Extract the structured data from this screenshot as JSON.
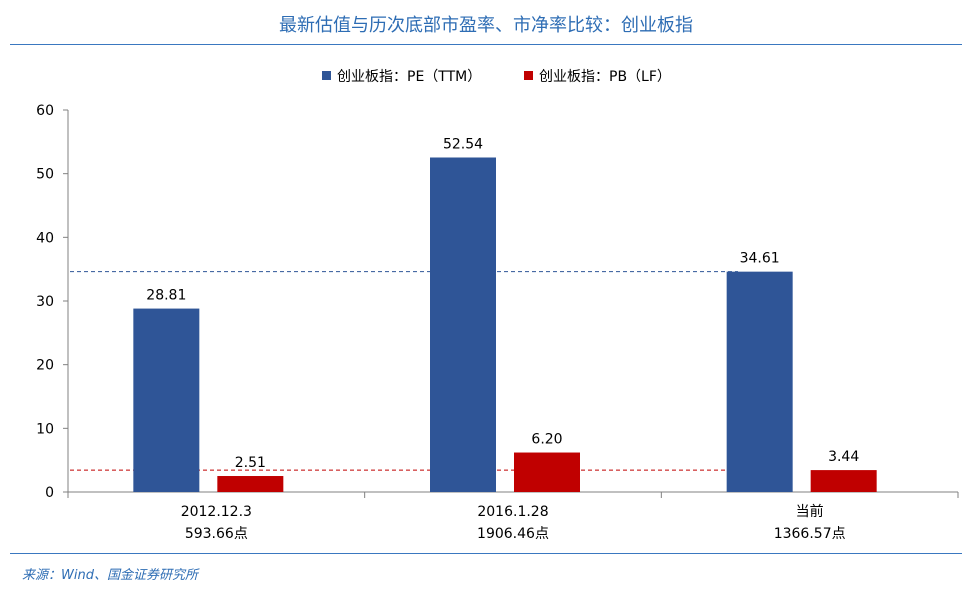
{
  "chart_title": "最新估值与历次底部市盈率、市净率比较：创业板指",
  "source": "来源：Wind、国金证券研究所",
  "chart_data": {
    "type": "bar",
    "title": "最新估值与历次底部市盈率、市净率比较：创业板指",
    "categories": [
      {
        "line1": "2012.12.3",
        "line2": "593.66点"
      },
      {
        "line1": "2016.1.28",
        "line2": "1906.46点"
      },
      {
        "line1": "当前",
        "line2": "1366.57点"
      }
    ],
    "series": [
      {
        "name": "创业板指：PE（TTM）",
        "color": "#2f5597",
        "values": [
          28.81,
          52.54,
          34.61
        ],
        "labels": [
          "28.81",
          "52.54",
          "34.61"
        ]
      },
      {
        "name": "创业板指：PB（LF）",
        "color": "#c00000",
        "values": [
          2.51,
          6.2,
          3.44
        ],
        "labels": [
          "2.51",
          "6.20",
          "3.44"
        ]
      }
    ],
    "reference_lines": [
      {
        "value": 34.61,
        "color": "#2f5597",
        "style": "dashed"
      },
      {
        "value": 3.44,
        "color": "#c00000",
        "style": "dashed"
      }
    ],
    "ylim": [
      0,
      60
    ],
    "yticks": [
      0,
      10,
      20,
      30,
      40,
      50,
      60
    ],
    "legend_position": "top-center",
    "grid": false
  }
}
